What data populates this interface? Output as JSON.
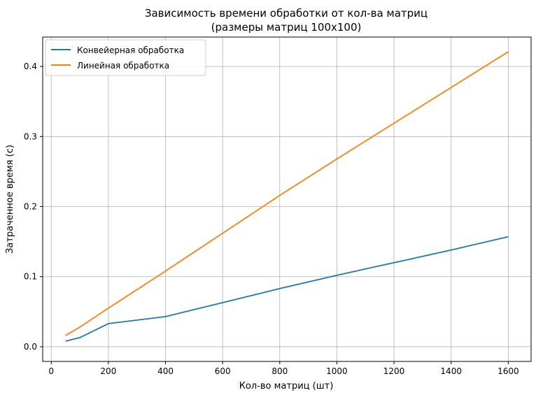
{
  "chart_data": {
    "type": "line",
    "title": "Зависимость времени обработки от кол-ва матриц",
    "subtitle": "(размеры матриц 100x100)",
    "xlabel": "Кол-во матриц (шт)",
    "ylabel": "Затраченное время (с)",
    "xlim": [
      -30,
      1680
    ],
    "ylim": [
      -0.021,
      0.442
    ],
    "xticks": [
      0,
      200,
      400,
      600,
      800,
      1000,
      1200,
      1400,
      1600
    ],
    "yticks": [
      0.0,
      0.1,
      0.2,
      0.3,
      0.4
    ],
    "xtick_labels": [
      "0",
      "200",
      "400",
      "600",
      "800",
      "1000",
      "1200",
      "1400",
      "1600"
    ],
    "ytick_labels": [
      "0.0",
      "0.1",
      "0.2",
      "0.3",
      "0.4"
    ],
    "grid": true,
    "legend_position": "top-left",
    "series": [
      {
        "name": "Конвейерная обработка",
        "color": "#1f77b4",
        "x": [
          50,
          100,
          200,
          400,
          600,
          800,
          1000,
          1200,
          1400,
          1600
        ],
        "y": [
          0.008,
          0.013,
          0.033,
          0.043,
          0.063,
          0.083,
          0.102,
          0.12,
          0.138,
          0.157
        ]
      },
      {
        "name": "Линейная обработка",
        "color": "#ff7f0e",
        "x": [
          50,
          100,
          200,
          400,
          600,
          800,
          1000,
          1200,
          1400,
          1600
        ],
        "y": [
          0.016,
          0.028,
          0.055,
          0.108,
          0.162,
          0.216,
          0.268,
          0.319,
          0.37,
          0.421
        ]
      }
    ]
  }
}
